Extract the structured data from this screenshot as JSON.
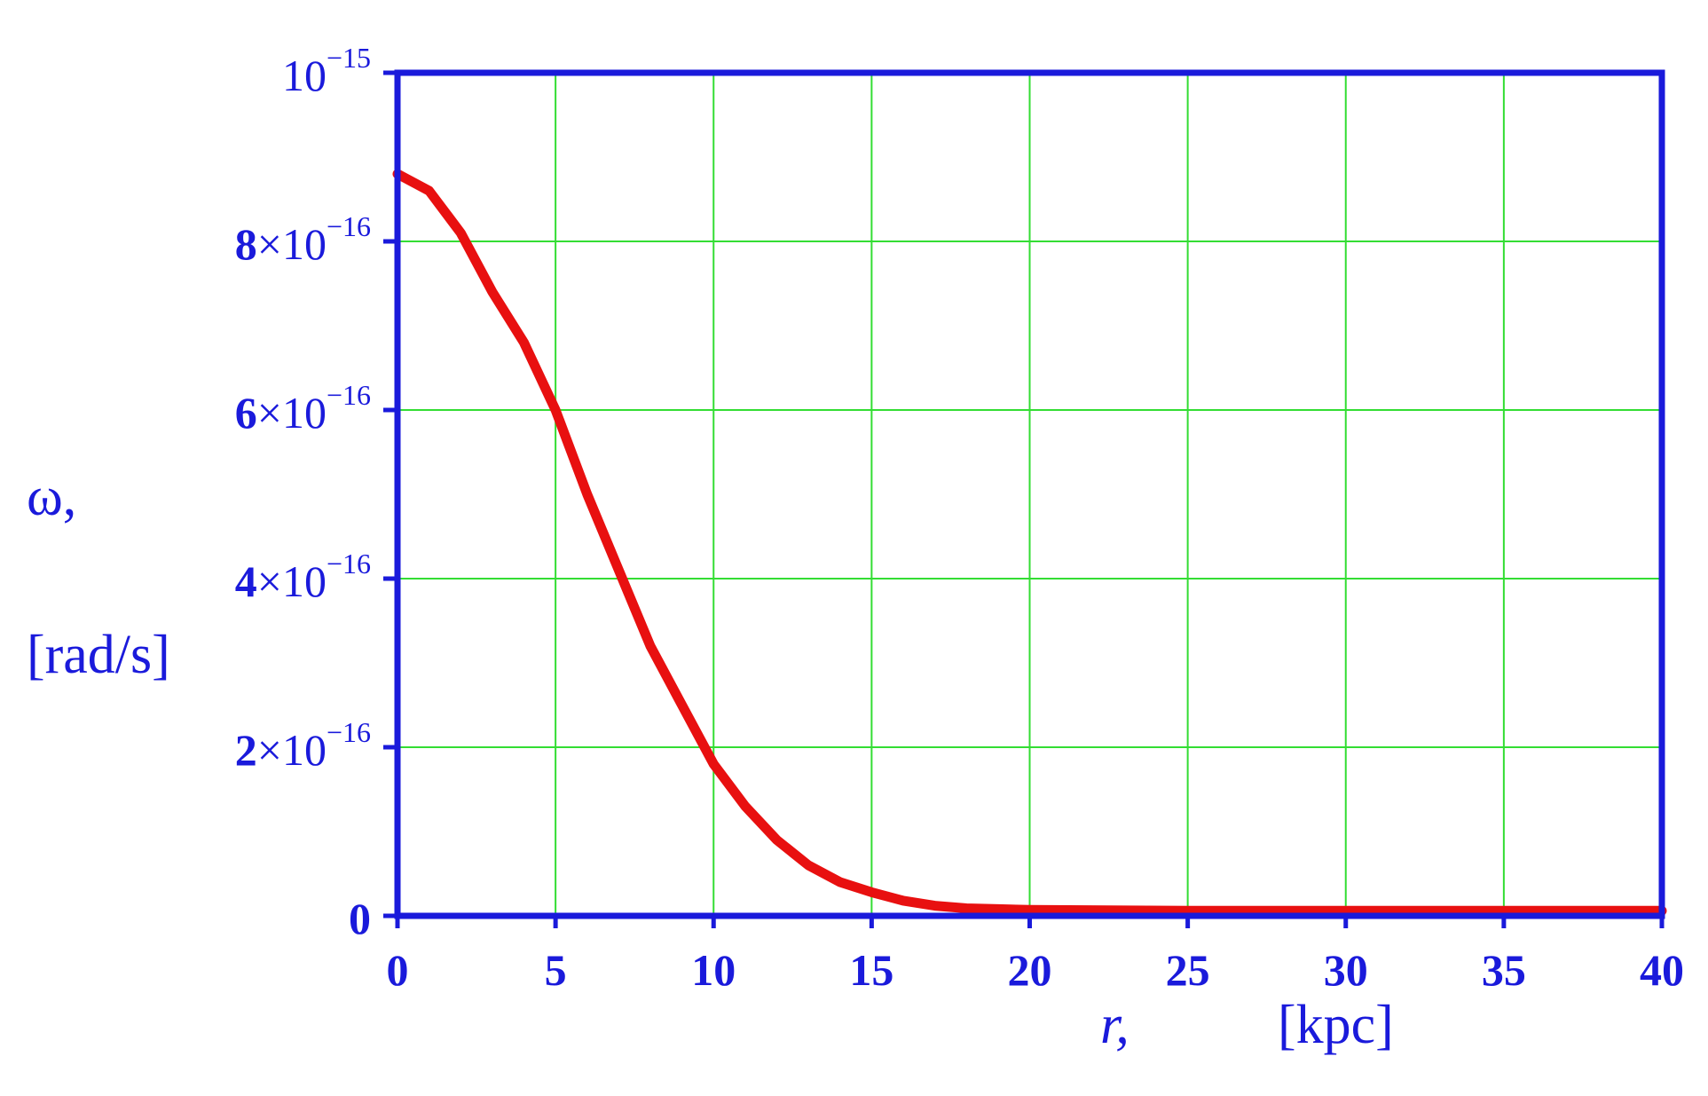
{
  "chart_data": {
    "type": "line",
    "title": "",
    "xlabel": "r,",
    "xlabel_unit": "[kpc]",
    "ylabel": "ω,",
    "ylabel_unit": "[rad/s]",
    "xlim": [
      0,
      40
    ],
    "ylim": [
      0,
      1e-15
    ],
    "x_ticks": [
      0,
      5,
      10,
      15,
      20,
      25,
      30,
      35,
      40
    ],
    "x_tick_labels": [
      "0",
      "5",
      "10",
      "15",
      "20",
      "25",
      "30",
      "35",
      "40"
    ],
    "y_ticks": [
      0,
      2e-16,
      4e-16,
      6e-16,
      8e-16,
      1e-15
    ],
    "y_tick_labels": [
      {
        "mantissa": "0",
        "base": "",
        "exponent": ""
      },
      {
        "mantissa": "2",
        "base": "×10",
        "exponent": "−16"
      },
      {
        "mantissa": "4",
        "base": "×10",
        "exponent": "−16"
      },
      {
        "mantissa": "6",
        "base": "×10",
        "exponent": "−16"
      },
      {
        "mantissa": "8",
        "base": "×10",
        "exponent": "−16"
      },
      {
        "mantissa": "",
        "base": "10",
        "exponent": "−15"
      }
    ],
    "grid": true,
    "series": [
      {
        "x": [
          0,
          1,
          2,
          3,
          4,
          5,
          6,
          7,
          8,
          9,
          10,
          11,
          12,
          13,
          14,
          15,
          16,
          17,
          18,
          19,
          20,
          25,
          30,
          35,
          40
        ],
        "y": [
          8.8e-16,
          8.6e-16,
          8.1e-16,
          7.4e-16,
          6.8e-16,
          6e-16,
          5e-16,
          4.1e-16,
          3.2e-16,
          2.5e-16,
          1.8e-16,
          1.3e-16,
          9e-17,
          6e-17,
          4e-17,
          2.8e-17,
          1.8e-17,
          1.2e-17,
          9e-18,
          8e-18,
          7e-18,
          6e-18,
          6e-18,
          6e-18,
          6e-18
        ]
      }
    ],
    "colors": {
      "axis": "#1a1adb",
      "grid": "#33dd33",
      "line": "#e81010",
      "text": "#1a1adb"
    }
  }
}
